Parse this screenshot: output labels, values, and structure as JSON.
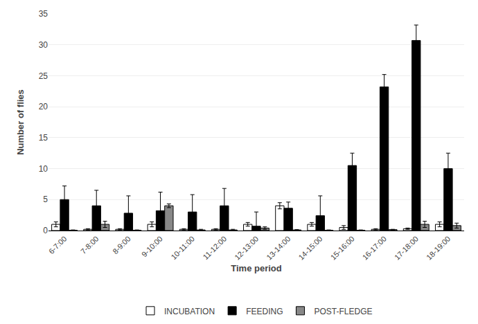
{
  "chart_data": {
    "type": "bar",
    "xlabel": "Time period",
    "ylabel": "Number of flies",
    "categories": [
      "6-7:00",
      "7-8:00",
      "8-9:00",
      "9-10:00",
      "10-11:00",
      "11-12:00",
      "12-13:00",
      "13-14:00",
      "14-15:00",
      "15-16:00",
      "16-17:00",
      "17-18:00",
      "18-19:00"
    ],
    "series": [
      {
        "name": "INCUBATION",
        "color": "#ffffff",
        "values": [
          1.0,
          0.2,
          0.2,
          1.0,
          0.2,
          0.2,
          1.0,
          4.0,
          1.0,
          0.5,
          0.2,
          0.3,
          1.0
        ],
        "errors": [
          0.4,
          0.1,
          0.1,
          0.4,
          0.1,
          0.1,
          0.3,
          0.5,
          0.3,
          0.3,
          0.1,
          0.1,
          0.4
        ]
      },
      {
        "name": "FEEDING",
        "color": "#000000",
        "values": [
          5.0,
          4.0,
          2.8,
          3.2,
          3.0,
          4.0,
          0.7,
          3.6,
          2.4,
          10.5,
          23.2,
          30.7,
          10.0
        ],
        "errors": [
          2.2,
          2.5,
          2.8,
          3.0,
          2.8,
          2.8,
          2.3,
          1.0,
          3.2,
          2.0,
          2.0,
          2.5,
          2.5
        ]
      },
      {
        "name": "POST-FLEDGE",
        "color": "#888888",
        "values": [
          0.05,
          1.0,
          0.05,
          4.0,
          0.1,
          0.1,
          0.4,
          0.1,
          0.05,
          0.05,
          0.15,
          1.0,
          0.8
        ],
        "errors": [
          0.05,
          0.5,
          0.05,
          0.3,
          0.1,
          0.1,
          0.2,
          0.05,
          0.05,
          0.05,
          0.05,
          0.5,
          0.4
        ]
      }
    ],
    "ylim": [
      0,
      35
    ],
    "yticks": [
      0,
      5,
      10,
      15,
      20,
      25,
      30,
      35
    ],
    "grid": true,
    "legend": "bottom"
  }
}
